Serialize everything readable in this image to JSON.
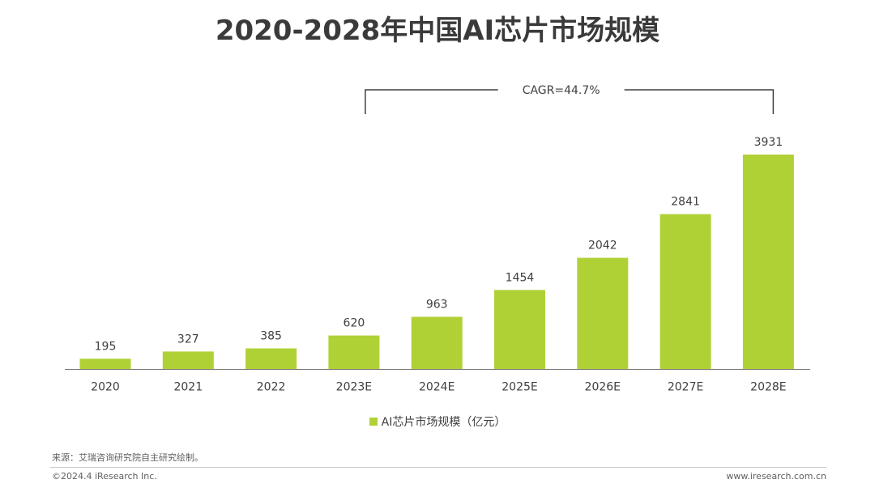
{
  "chart_data": {
    "type": "bar",
    "title": "2020-2028年中国AI芯片市场规模",
    "categories": [
      "2020",
      "2021",
      "2022",
      "2023E",
      "2024E",
      "2025E",
      "2026E",
      "2027E",
      "2028E"
    ],
    "series": [
      {
        "name": "AI芯片市场规模（亿元）",
        "values": [
          195,
          327,
          385,
          620,
          963,
          1454,
          2042,
          2841,
          3931
        ],
        "color": "#b0d136"
      }
    ],
    "ylim": [
      0,
      4500
    ],
    "grid": false,
    "legend_position": "bottom-center",
    "annotation": {
      "text": "CAGR=44.7%",
      "from_category": "2023E",
      "to_category": "2028E"
    }
  },
  "footer": {
    "source": "来源：艾瑞咨询研究院自主研究绘制。",
    "copyright": "©2024.4 iResearch Inc.",
    "website": "www.iresearch.com.cn"
  }
}
